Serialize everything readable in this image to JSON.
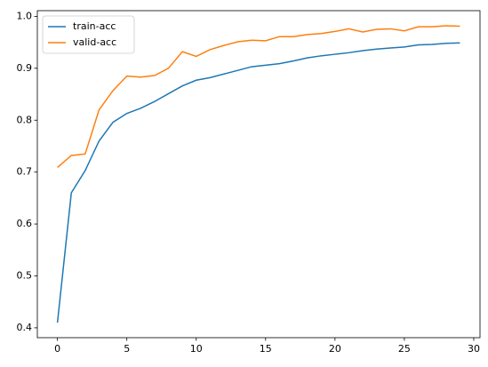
{
  "chart_data": {
    "type": "line",
    "x": [
      0,
      1,
      2,
      3,
      4,
      5,
      6,
      7,
      8,
      9,
      10,
      11,
      12,
      13,
      14,
      15,
      16,
      17,
      18,
      19,
      20,
      21,
      22,
      23,
      24,
      25,
      26,
      27,
      28,
      29
    ],
    "series": [
      {
        "name": "train-acc",
        "color": "#1f77b4",
        "values": [
          0.41,
          0.66,
          0.703,
          0.76,
          0.796,
          0.813,
          0.823,
          0.836,
          0.851,
          0.866,
          0.877,
          0.882,
          0.889,
          0.896,
          0.903,
          0.906,
          0.909,
          0.914,
          0.92,
          0.924,
          0.927,
          0.93,
          0.934,
          0.937,
          0.939,
          0.941,
          0.945,
          0.946,
          0.948,
          0.949
        ]
      },
      {
        "name": "valid-acc",
        "color": "#ff7f0e",
        "values": [
          0.709,
          0.732,
          0.735,
          0.82,
          0.857,
          0.885,
          0.883,
          0.886,
          0.9,
          0.932,
          0.923,
          0.936,
          0.944,
          0.951,
          0.954,
          0.953,
          0.961,
          0.961,
          0.965,
          0.967,
          0.971,
          0.976,
          0.97,
          0.975,
          0.976,
          0.972,
          0.98,
          0.98,
          0.982,
          0.981
        ]
      }
    ],
    "xlim": [
      -1.45,
      30.45
    ],
    "xticks": [
      0,
      5,
      10,
      15,
      20,
      25,
      30
    ],
    "ylim": [
      0.381,
      1.011
    ],
    "yticks": [
      0.4,
      0.5,
      0.6,
      0.7,
      0.8,
      0.9,
      {
        "value": 1,
        "label": "1.0"
      }
    ],
    "legend": "upper left"
  }
}
